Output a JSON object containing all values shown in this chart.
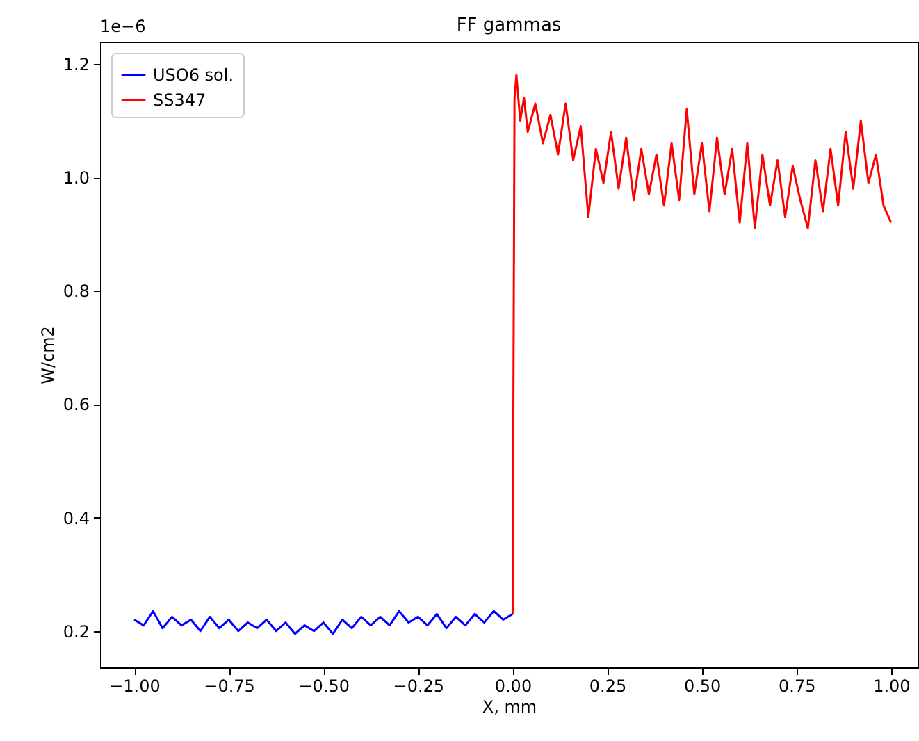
{
  "chart_data": {
    "type": "line",
    "title": "FF gammas",
    "xlabel": "X, mm",
    "ylabel": "W/cm2",
    "annotations": [
      "1e−6"
    ],
    "xlim": [
      -1.09,
      1.07
    ],
    "ylim": [
      0.136,
      1.239
    ],
    "xticks": [
      {
        "value": -1,
        "label": "−1.00"
      },
      {
        "value": -0.75,
        "label": "−0.75"
      },
      {
        "value": -0.5,
        "label": "−0.50"
      },
      {
        "value": -0.25,
        "label": "−0.25"
      },
      {
        "value": 0,
        "label": "0.00"
      },
      {
        "value": 0.25,
        "label": "0.25"
      },
      {
        "value": 0.5,
        "label": "0.50"
      },
      {
        "value": 0.75,
        "label": "0.75"
      },
      {
        "value": 1,
        "label": "1.00"
      }
    ],
    "yticks": [
      0.2,
      0.4,
      0.6,
      0.8,
      {
        "value": 1,
        "label": "1.0"
      },
      1.2
    ],
    "legend": "top left",
    "grid": false,
    "marker": "none",
    "line_style": "solid",
    "series": [
      {
        "name": "USO6 sol.",
        "color": "#0000ff",
        "x": [
          -1,
          -0.975,
          -0.95,
          -0.925,
          -0.9,
          -0.875,
          -0.85,
          -0.825,
          -0.8,
          -0.775,
          -0.75,
          -0.725,
          -0.7,
          -0.675,
          -0.65,
          -0.625,
          -0.6,
          -0.575,
          -0.55,
          -0.525,
          -0.5,
          -0.475,
          -0.45,
          -0.425,
          -0.4,
          -0.375,
          -0.35,
          -0.325,
          -0.3,
          -0.275,
          -0.25,
          -0.225,
          -0.2,
          -0.175,
          -0.15,
          -0.125,
          -0.1,
          -0.075,
          -0.05,
          -0.025,
          0
        ],
        "values": [
          0.22,
          0.21,
          0.235,
          0.205,
          0.225,
          0.21,
          0.22,
          0.2,
          0.225,
          0.205,
          0.22,
          0.2,
          0.215,
          0.205,
          0.22,
          0.2,
          0.215,
          0.195,
          0.21,
          0.2,
          0.215,
          0.195,
          0.22,
          0.205,
          0.225,
          0.21,
          0.225,
          0.21,
          0.235,
          0.215,
          0.225,
          0.21,
          0.23,
          0.205,
          0.225,
          0.21,
          0.23,
          0.215,
          0.235,
          0.22,
          0.23
        ]
      },
      {
        "name": "SS347",
        "color": "#ff0000",
        "x": [
          0,
          0.005,
          0.01,
          0.02,
          0.03,
          0.04,
          0.06,
          0.08,
          0.1,
          0.12,
          0.14,
          0.16,
          0.18,
          0.2,
          0.22,
          0.24,
          0.26,
          0.28,
          0.3,
          0.32,
          0.34,
          0.36,
          0.38,
          0.4,
          0.42,
          0.44,
          0.46,
          0.48,
          0.5,
          0.52,
          0.54,
          0.56,
          0.58,
          0.6,
          0.62,
          0.64,
          0.66,
          0.68,
          0.7,
          0.72,
          0.74,
          0.76,
          0.78,
          0.8,
          0.82,
          0.84,
          0.86,
          0.88,
          0.9,
          0.92,
          0.94,
          0.96,
          0.98,
          1
        ],
        "values": [
          0.23,
          1.14,
          1.18,
          1.1,
          1.14,
          1.08,
          1.13,
          1.06,
          1.11,
          1.04,
          1.13,
          1.03,
          1.09,
          0.93,
          1.05,
          0.99,
          1.08,
          0.98,
          1.07,
          0.96,
          1.05,
          0.97,
          1.04,
          0.95,
          1.06,
          0.96,
          1.12,
          0.97,
          1.06,
          0.94,
          1.07,
          0.97,
          1.05,
          0.92,
          1.06,
          0.91,
          1.04,
          0.95,
          1.03,
          0.93,
          1.02,
          0.96,
          0.91,
          1.03,
          0.94,
          1.05,
          0.95,
          1.08,
          0.98,
          1.1,
          0.99,
          1.04,
          0.95,
          0.92
        ]
      }
    ]
  }
}
